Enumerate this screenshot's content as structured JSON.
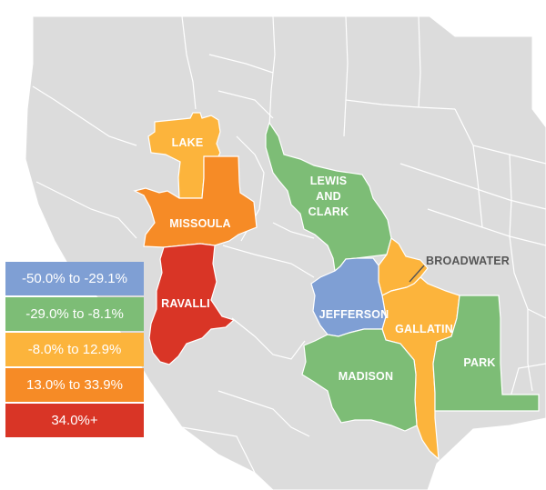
{
  "colors": {
    "background_land": "#dcdcdc",
    "border": "#ffffff",
    "blue": "#7f9fd4",
    "green": "#7dbd76",
    "yellow": "#fcb43c",
    "orange": "#f68b26",
    "red": "#d93526"
  },
  "legend": {
    "items": [
      {
        "label": "-50.0% to -29.1%",
        "color": "#7f9fd4"
      },
      {
        "label": "-29.0% to -8.1%",
        "color": "#7dbd76"
      },
      {
        "label": "-8.0% to 12.9%",
        "color": "#fcb43c"
      },
      {
        "label": "13.0% to 33.9%",
        "color": "#f68b26"
      },
      {
        "label": "34.0%+",
        "color": "#d93526"
      }
    ]
  },
  "counties": {
    "lake": {
      "name": "LAKE",
      "color": "#fcb43c"
    },
    "missoula": {
      "name": "MISSOULA",
      "color": "#f68b26"
    },
    "ravalli": {
      "name": "RAVALLI",
      "color": "#d93526"
    },
    "lewis_and_clark": {
      "line1": "LEWIS",
      "line2": "AND",
      "line3": "CLARK",
      "color": "#7dbd76"
    },
    "broadwater": {
      "name": "BROADWATER",
      "color": "#fcb43c"
    },
    "jefferson": {
      "name": "JEFFERSON",
      "color": "#7f9fd4"
    },
    "gallatin": {
      "name": "GALLATIN",
      "color": "#fcb43c"
    },
    "madison": {
      "name": "MADISON",
      "color": "#7dbd76"
    },
    "park": {
      "name": "PARK",
      "color": "#7dbd76"
    }
  }
}
